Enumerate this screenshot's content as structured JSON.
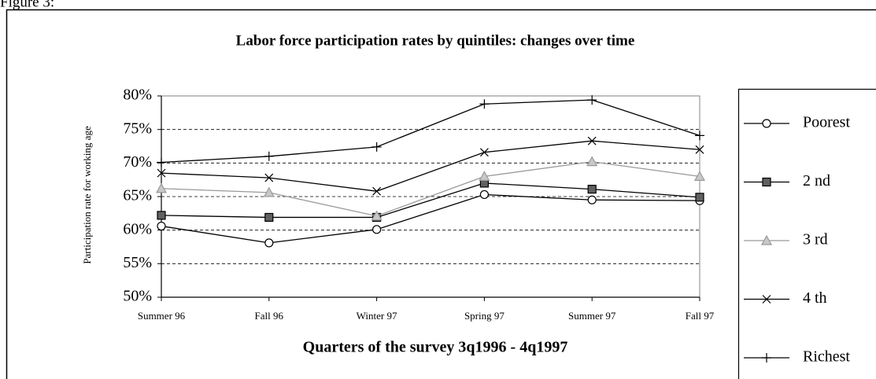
{
  "figure_label": "Figure 3:",
  "chart_data": {
    "type": "line",
    "title": "Labor force participation rates by quintiles: changes over time",
    "x_label": "Quarters of the survey 3q1996 - 4q1997",
    "y_label": "Participation rate for working age",
    "categories": [
      "Summer 96",
      "Fall 96",
      "Winter 97",
      "Spring 97",
      "Summer 97",
      "Fall 97"
    ],
    "ylim": [
      50,
      80
    ],
    "yticks": [
      {
        "value": 50,
        "label": "50%"
      },
      {
        "value": 55,
        "label": "55%"
      },
      {
        "value": 60,
        "label": "60%"
      },
      {
        "value": 65,
        "label": "65%"
      },
      {
        "value": 70,
        "label": "70%"
      },
      {
        "value": 75,
        "label": "75%"
      },
      {
        "value": 80,
        "label": "80%"
      }
    ],
    "grid": true,
    "legend": "right",
    "series": [
      {
        "name": "Poorest",
        "color": "#000000",
        "marker": "circle",
        "marker_fill": "#ffffff",
        "values": [
          60.6,
          58.1,
          60.1,
          65.3,
          64.5,
          64.4
        ]
      },
      {
        "name": "2 nd",
        "color": "#000000",
        "marker": "square",
        "marker_fill": "#606060",
        "values": [
          62.2,
          61.9,
          61.9,
          67.0,
          66.1,
          64.9
        ]
      },
      {
        "name": "3 rd",
        "color": "#999999",
        "marker": "triangle",
        "marker_fill": "#c8c8c8",
        "values": [
          66.2,
          65.6,
          62.1,
          68.0,
          70.2,
          68.0
        ]
      },
      {
        "name": "4 th",
        "color": "#000000",
        "marker": "x",
        "marker_fill": "none",
        "values": [
          68.5,
          67.8,
          65.8,
          71.6,
          73.3,
          72.0
        ]
      },
      {
        "name": "Richest",
        "color": "#000000",
        "marker": "plus",
        "marker_fill": "none",
        "values": [
          70.1,
          71.0,
          72.4,
          78.8,
          79.4,
          74.1
        ]
      }
    ]
  }
}
